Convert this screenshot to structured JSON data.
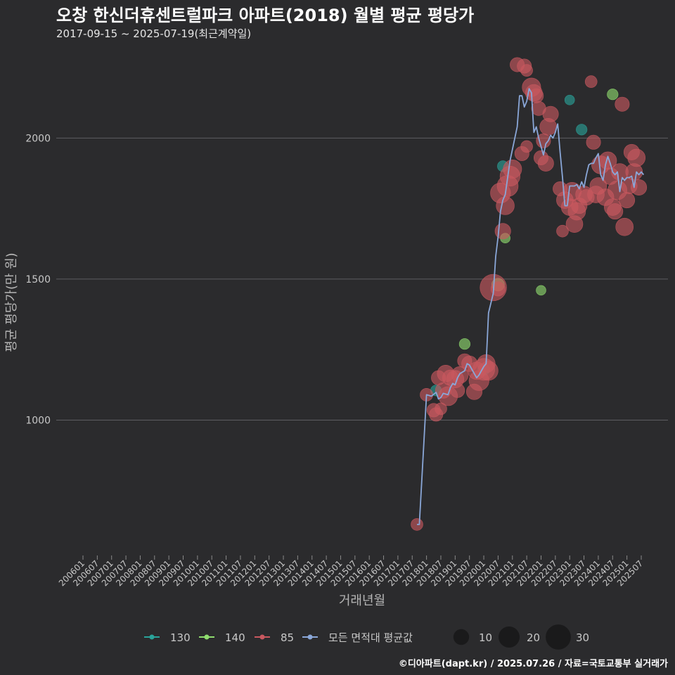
{
  "header": {
    "title": "오창 한신더휴센트럴파크 아파트(2018) 월별 평균 평당가",
    "subtitle": "2017-09-15 ~ 2025-07-19(최근계약일)"
  },
  "footer": {
    "credit": "©디아파트(dapt.kr) / 2025.07.26 / 자료=국토교통부 실거래가"
  },
  "colors": {
    "background": "#2b2b2d",
    "grid": "#5e5e62",
    "s130": "#2aa39a",
    "s140": "#8fdc6e",
    "s85": "#c9585f",
    "avg": "#8aa7d8"
  },
  "chart_data": {
    "type": "scatter",
    "title": "오창 한신더휴센트럴파크 아파트(2018) 월별 평균 평당가",
    "xlabel": "거래년월",
    "ylabel": "평균 평당가(만 원)",
    "y_ticks": [
      1000,
      1500,
      2000
    ],
    "ylim": [
      520,
      2290
    ],
    "x_range": [
      "2006-01",
      "2025-07"
    ],
    "x_tick_labels": [
      "200601",
      "200607",
      "200701",
      "200707",
      "200801",
      "200807",
      "200901",
      "200907",
      "201001",
      "201007",
      "201101",
      "201107",
      "201201",
      "201207",
      "201301",
      "201307",
      "201401",
      "201407",
      "201501",
      "201507",
      "201601",
      "201607",
      "201701",
      "201707",
      "201801",
      "201807",
      "201901",
      "201907",
      "202001",
      "202007",
      "202101",
      "202107",
      "202201",
      "202207",
      "202301",
      "202307",
      "202401",
      "202407",
      "202501",
      "202507"
    ],
    "legend": {
      "series": [
        {
          "key": "s130",
          "label": "130"
        },
        {
          "key": "s140",
          "label": "140"
        },
        {
          "key": "s85",
          "label": "85"
        },
        {
          "key": "avg",
          "label": "모든 면적대 평균값"
        }
      ],
      "sizes": [
        {
          "label": "10",
          "value": 10
        },
        {
          "label": "20",
          "value": 20
        },
        {
          "label": "30",
          "value": 30
        }
      ]
    },
    "average_line": {
      "name": "모든 면적대 평균값",
      "points": [
        [
          "2017-09",
          630
        ],
        [
          "2017-10",
          630
        ],
        [
          "2018-01",
          1090
        ],
        [
          "2018-03",
          1085
        ],
        [
          "2018-05",
          1098
        ],
        [
          "2018-06",
          1075
        ],
        [
          "2018-07",
          1080
        ],
        [
          "2018-08",
          1095
        ],
        [
          "2018-10",
          1090
        ],
        [
          "2018-11",
          1115
        ],
        [
          "2018-12",
          1130
        ],
        [
          "2019-01",
          1125
        ],
        [
          "2019-02",
          1150
        ],
        [
          "2019-03",
          1165
        ],
        [
          "2019-05",
          1175
        ],
        [
          "2019-06",
          1200
        ],
        [
          "2019-07",
          1195
        ],
        [
          "2019-08",
          1180
        ],
        [
          "2019-10",
          1150
        ],
        [
          "2019-11",
          1160
        ],
        [
          "2020-01",
          1190
        ],
        [
          "2020-02",
          1200
        ],
        [
          "2020-03",
          1380
        ],
        [
          "2020-05",
          1450
        ],
        [
          "2020-06",
          1580
        ],
        [
          "2020-07",
          1650
        ],
        [
          "2020-08",
          1740
        ],
        [
          "2020-09",
          1780
        ],
        [
          "2020-10",
          1800
        ],
        [
          "2020-11",
          1860
        ],
        [
          "2020-12",
          1920
        ],
        [
          "2021-01",
          1960
        ],
        [
          "2021-02",
          2000
        ],
        [
          "2021-03",
          2040
        ],
        [
          "2021-04",
          2150
        ],
        [
          "2021-05",
          2150
        ],
        [
          "2021-06",
          2110
        ],
        [
          "2021-07",
          2130
        ],
        [
          "2021-08",
          2175
        ],
        [
          "2021-09",
          2160
        ],
        [
          "2021-10",
          2020
        ],
        [
          "2021-11",
          2040
        ],
        [
          "2021-12",
          2000
        ],
        [
          "2022-01",
          1970
        ],
        [
          "2022-02",
          1940
        ],
        [
          "2022-03",
          1980
        ],
        [
          "2022-04",
          1990
        ],
        [
          "2022-05",
          2010
        ],
        [
          "2022-06",
          2000
        ],
        [
          "2022-07",
          2020
        ],
        [
          "2022-08",
          2050
        ],
        [
          "2022-09",
          1950
        ],
        [
          "2022-10",
          1860
        ],
        [
          "2022-11",
          1760
        ],
        [
          "2022-12",
          1760
        ],
        [
          "2023-01",
          1830
        ],
        [
          "2023-02",
          1830
        ],
        [
          "2023-03",
          1830
        ],
        [
          "2023-04",
          1835
        ],
        [
          "2023-05",
          1820
        ],
        [
          "2023-06",
          1845
        ],
        [
          "2023-07",
          1825
        ],
        [
          "2023-08",
          1870
        ],
        [
          "2023-09",
          1905
        ],
        [
          "2023-10",
          1910
        ],
        [
          "2023-11",
          1910
        ],
        [
          "2023-12",
          1930
        ],
        [
          "2024-01",
          1945
        ],
        [
          "2024-02",
          1870
        ],
        [
          "2024-03",
          1850
        ],
        [
          "2024-04",
          1905
        ],
        [
          "2024-05",
          1935
        ],
        [
          "2024-06",
          1910
        ],
        [
          "2024-07",
          1880
        ],
        [
          "2024-08",
          1870
        ],
        [
          "2024-09",
          1880
        ],
        [
          "2024-10",
          1810
        ],
        [
          "2024-11",
          1860
        ],
        [
          "2024-12",
          1850
        ],
        [
          "2025-01",
          1860
        ],
        [
          "2025-02",
          1860
        ],
        [
          "2025-03",
          1865
        ],
        [
          "2025-04",
          1825
        ],
        [
          "2025-05",
          1880
        ],
        [
          "2025-06",
          1870
        ],
        [
          "2025-07",
          1880
        ],
        [
          "2025-08",
          1870
        ]
      ]
    },
    "scatter_series": [
      {
        "name": "130",
        "key": "s130",
        "points": [
          [
            "2018-05",
            1105,
            4
          ],
          [
            "2020-01",
            1180,
            5
          ],
          [
            "2020-09",
            1900,
            4
          ],
          [
            "2023-01",
            2135,
            3
          ],
          [
            "2023-06",
            2030,
            4
          ]
        ]
      },
      {
        "name": "140",
        "key": "s140",
        "points": [
          [
            "2019-05",
            1270,
            4
          ],
          [
            "2020-07",
            1480,
            6
          ],
          [
            "2020-10",
            1645,
            3
          ],
          [
            "2022-01",
            1460,
            3
          ],
          [
            "2024-07",
            2155,
            4
          ]
        ]
      },
      {
        "name": "85",
        "key": "s85",
        "points": [
          [
            "2017-09",
            630,
            5
          ],
          [
            "2018-01",
            1090,
            6
          ],
          [
            "2018-04",
            1035,
            7
          ],
          [
            "2018-05",
            1020,
            7
          ],
          [
            "2018-06",
            1150,
            8
          ],
          [
            "2018-07",
            1040,
            5
          ],
          [
            "2018-08",
            1105,
            10
          ],
          [
            "2018-09",
            1165,
            12
          ],
          [
            "2018-10",
            1085,
            16
          ],
          [
            "2018-11",
            1150,
            10
          ],
          [
            "2019-01",
            1145,
            13
          ],
          [
            "2019-02",
            1105,
            8
          ],
          [
            "2019-03",
            1160,
            12
          ],
          [
            "2019-05",
            1210,
            8
          ],
          [
            "2019-07",
            1200,
            10
          ],
          [
            "2019-09",
            1100,
            10
          ],
          [
            "2019-10",
            1175,
            13
          ],
          [
            "2019-11",
            1140,
            18
          ],
          [
            "2020-01",
            1180,
            22
          ],
          [
            "2020-02",
            1200,
            14
          ],
          [
            "2020-03",
            1175,
            16
          ],
          [
            "2020-05",
            1470,
            34
          ],
          [
            "2020-07",
            1465,
            8
          ],
          [
            "2020-08",
            1805,
            18
          ],
          [
            "2020-09",
            1670,
            10
          ],
          [
            "2020-10",
            1760,
            14
          ],
          [
            "2020-11",
            1830,
            20
          ],
          [
            "2020-12",
            1865,
            18
          ],
          [
            "2021-01",
            1890,
            15
          ],
          [
            "2021-03",
            2260,
            8
          ],
          [
            "2021-05",
            1945,
            8
          ],
          [
            "2021-06",
            2255,
            8
          ],
          [
            "2021-07",
            2240,
            5
          ],
          [
            "2021-07",
            1970,
            5
          ],
          [
            "2021-09",
            2180,
            15
          ],
          [
            "2021-10",
            2160,
            12
          ],
          [
            "2021-11",
            2150,
            8
          ],
          [
            "2021-12",
            2105,
            8
          ],
          [
            "2022-01",
            1930,
            8
          ],
          [
            "2022-02",
            1990,
            8
          ],
          [
            "2022-03",
            1910,
            10
          ],
          [
            "2022-04",
            2040,
            12
          ],
          [
            "2022-05",
            2085,
            10
          ],
          [
            "2022-09",
            1820,
            8
          ],
          [
            "2022-10",
            1670,
            5
          ],
          [
            "2022-11",
            1780,
            12
          ],
          [
            "2023-01",
            1755,
            12
          ],
          [
            "2023-02",
            1810,
            15
          ],
          [
            "2023-03",
            1695,
            12
          ],
          [
            "2023-04",
            1740,
            13
          ],
          [
            "2023-05",
            1760,
            10
          ],
          [
            "2023-07",
            1800,
            12
          ],
          [
            "2023-08",
            1790,
            10
          ],
          [
            "2023-10",
            2200,
            5
          ],
          [
            "2023-11",
            1985,
            8
          ],
          [
            "2023-12",
            1800,
            12
          ],
          [
            "2024-01",
            1830,
            12
          ],
          [
            "2024-02",
            1905,
            14
          ],
          [
            "2024-04",
            1790,
            12
          ],
          [
            "2024-05",
            1920,
            13
          ],
          [
            "2024-06",
            1865,
            12
          ],
          [
            "2024-07",
            1755,
            12
          ],
          [
            "2024-08",
            1740,
            10
          ],
          [
            "2024-09",
            1815,
            16
          ],
          [
            "2024-10",
            1880,
            12
          ],
          [
            "2024-11",
            2120,
            8
          ],
          [
            "2024-12",
            1685,
            13
          ],
          [
            "2025-01",
            1780,
            10
          ],
          [
            "2025-02",
            1830,
            10
          ],
          [
            "2025-03",
            1950,
            10
          ],
          [
            "2025-04",
            1880,
            12
          ],
          [
            "2025-05",
            1930,
            13
          ],
          [
            "2025-06",
            1825,
            10
          ]
        ]
      }
    ]
  }
}
